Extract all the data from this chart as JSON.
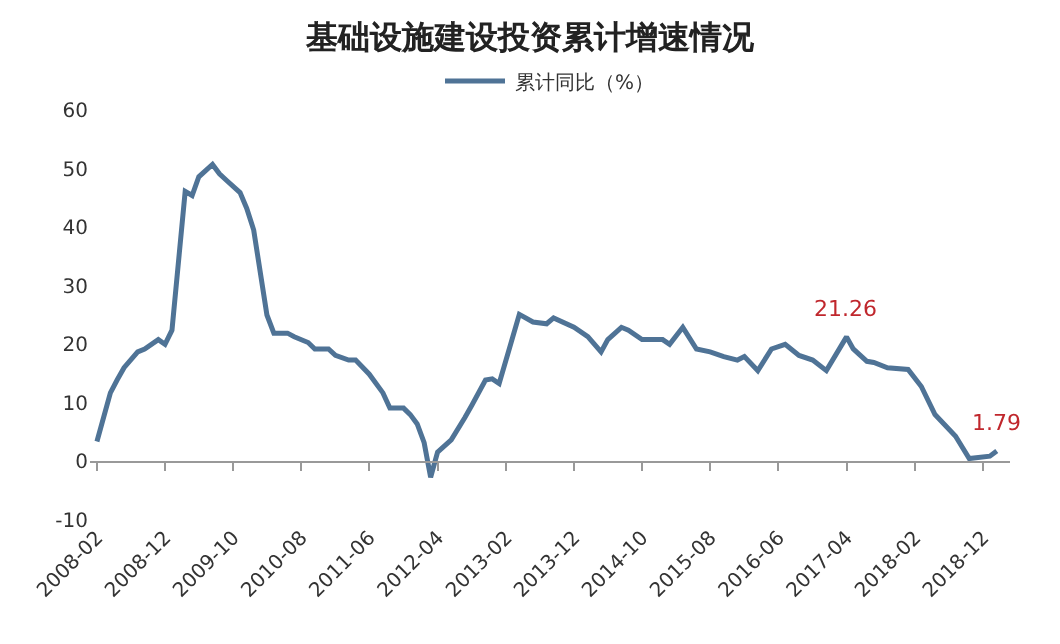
{
  "chart_data": {
    "type": "line",
    "title": "基础设施建设投资累计增速情况",
    "x": [
      "2008-02",
      "2008-04",
      "2008-05",
      "2008-06",
      "2008-08",
      "2008-09",
      "2008-11",
      "2008-12",
      "2009-01",
      "2009-03",
      "2009-04",
      "2009-05",
      "2009-07",
      "2009-08",
      "2009-09",
      "2009-11",
      "2009-12",
      "2010-01",
      "2010-03",
      "2010-04",
      "2010-06",
      "2010-07",
      "2010-09",
      "2010-10",
      "2010-12",
      "2011-01",
      "2011-03",
      "2011-04",
      "2011-06",
      "2011-08",
      "2011-09",
      "2011-11",
      "2011-12",
      "2012-01",
      "2012-02",
      "2012-03",
      "2012-04",
      "2012-06",
      "2012-08",
      "2012-09",
      "2012-11",
      "2012-12",
      "2013-01",
      "2013-04",
      "2013-06",
      "2013-08",
      "2013-09",
      "2013-12",
      "2014-02",
      "2014-04",
      "2014-05",
      "2014-07",
      "2014-08",
      "2014-10",
      "2015-01",
      "2015-02",
      "2015-04",
      "2015-06",
      "2015-08",
      "2015-10",
      "2015-12",
      "2016-01",
      "2016-03",
      "2016-05",
      "2016-07",
      "2016-09",
      "2016-11",
      "2017-01",
      "2017-04",
      "2017-05",
      "2017-07",
      "2017-08",
      "2017-10",
      "2018-01",
      "2018-03",
      "2018-05",
      "2018-08",
      "2018-10",
      "2019-01",
      "2019-02"
    ],
    "series": [
      {
        "name": "累计同比（%）",
        "color": "#4f7396",
        "values": [
          3.4,
          11.7,
          13.9,
          16,
          18.7,
          19.2,
          20.8,
          20,
          22.4,
          46.1,
          45.4,
          48.6,
          50.7,
          49.1,
          48,
          45.9,
          43.2,
          39.5,
          25,
          21.9,
          21.9,
          21.3,
          20.3,
          19.2,
          19.2,
          18.1,
          17.3,
          17.3,
          14.9,
          11.7,
          9.1,
          9.1,
          8,
          6.4,
          3.2,
          -2.7,
          1.6,
          3.7,
          7.5,
          9.6,
          13.9,
          14.1,
          13.3,
          25.1,
          23.8,
          23.5,
          24.5,
          22.9,
          21.3,
          18.7,
          20.8,
          22.9,
          22.4,
          20.8,
          20.8,
          20,
          22.9,
          19.2,
          18.7,
          17.9,
          17.3,
          17.9,
          15.5,
          19.2,
          20,
          18.1,
          17.3,
          15.5,
          21.26,
          19.2,
          17.1,
          16.9,
          16,
          15.7,
          12.8,
          8,
          4.3,
          0.5,
          0.9,
          1.79
        ]
      }
    ],
    "xlim": [
      "2008-01",
      "2019-04"
    ],
    "xticks": [
      "2008-02",
      "2008-12",
      "2009-10",
      "2010-08",
      "2011-06",
      "2012-04",
      "2013-02",
      "2013-12",
      "2014-10",
      "2015-08",
      "2016-06",
      "2017-04",
      "2018-02",
      "2018-12"
    ],
    "ylim": [
      -10,
      60
    ],
    "yticks": [
      -10,
      0,
      10,
      20,
      30,
      40,
      50,
      60
    ],
    "annotations": [
      {
        "text": "21.26",
        "x": "2017-04",
        "y": 21.26
      },
      {
        "text": "1.79",
        "x": "2019-02",
        "y": 1.79
      }
    ],
    "legend": "top",
    "marker": "none",
    "line_style": "solid"
  }
}
